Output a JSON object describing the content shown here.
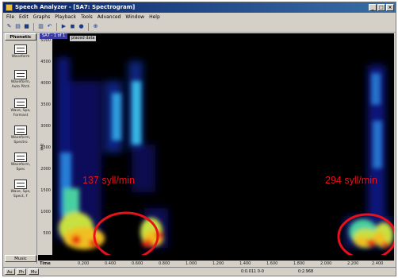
{
  "window": {
    "title": "Speech Analyzer - [SA7: Spectrogram]"
  },
  "menu": [
    "File",
    "Edit",
    "Graphs",
    "Playback",
    "Tools",
    "Advanced",
    "Window",
    "Help"
  ],
  "toolbar": {
    "icons": [
      "new-icon",
      "open-icon",
      "save-icon",
      "print-icon",
      "undo-icon",
      "play-icon",
      "stop-icon",
      "record-icon",
      "zoom-icon"
    ]
  },
  "sidebar": {
    "header": "Phonetic",
    "items": [
      {
        "label": "Waveform"
      },
      {
        "label": "Waveform, Auto Pitch"
      },
      {
        "label": "Wave, Spa, Formant"
      },
      {
        "label": "Waveform, Spectro"
      },
      {
        "label": "Waveform, Spec"
      },
      {
        "label": "Wave, Spe, Spect, F"
      }
    ],
    "footer": "Music"
  },
  "document": {
    "tab": "SA7 - 1 of 1",
    "plot_title": "placed data"
  },
  "axes": {
    "y_label": "kHz",
    "y_ticks": [
      "5000",
      "4500",
      "4000",
      "3500",
      "3000",
      "2500",
      "2000",
      "1500",
      "1000",
      "500"
    ],
    "x_ticks": [
      "0.200",
      "0.400",
      "0.600",
      "0.800",
      "1.000",
      "1.200",
      "1.400",
      "1.600",
      "1.800",
      "2.000",
      "2.200",
      "2.400"
    ],
    "x_name": "Time"
  },
  "annotations": {
    "left": "137 syll/min",
    "right": "294 syll/min",
    "circle_color": "#e8101a"
  },
  "status": {
    "tabs": [
      "Au",
      "Ph",
      "Mu"
    ],
    "pos": "0:0.011 0-0",
    "length": "0:2.968"
  }
}
